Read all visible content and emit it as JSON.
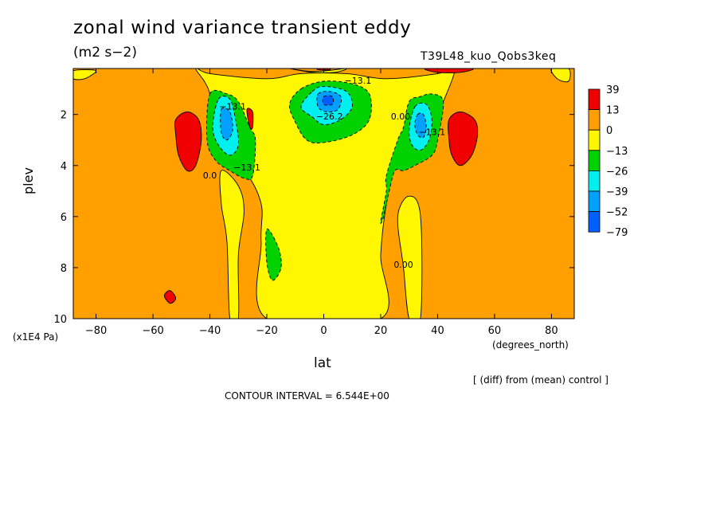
{
  "title": "zonal wind variance transient eddy",
  "units": "(m2 s−2)",
  "run_label": "T39L48_kuo_Qobs3keq",
  "diff_note": "[ (diff) from (mean) control ]",
  "contour_interval": "CONTOUR INTERVAL = 6.544E+00",
  "colors": {
    "c39": "#f00000",
    "c13": "#ffa000",
    "c0": "#fff700",
    "cm13": "#00d200",
    "cm26": "#00f0f0",
    "cm39": "#00a0ff",
    "cm52": "#0060ff"
  },
  "chart_data": {
    "type": "heatmap",
    "subtype": "filled-contour",
    "title": "zonal wind variance transient eddy",
    "xlabel": "lat",
    "xunits": "(degrees_north)",
    "ylabel": "plev",
    "yunits": "(x1E4 Pa)",
    "xlim": [
      -88,
      88
    ],
    "ylim": [
      10,
      0.2
    ],
    "xticks": [
      -80,
      -60,
      -40,
      -20,
      0,
      20,
      40,
      60,
      80
    ],
    "xtick_labels": [
      "−80",
      "−60",
      "−40",
      "−20",
      "0",
      "20",
      "40",
      "60",
      "80"
    ],
    "yticks": [
      2,
      4,
      6,
      8,
      10
    ],
    "ytick_labels": [
      "2",
      "4",
      "6",
      "8",
      "10"
    ],
    "colorbar": {
      "labels": [
        "39",
        "13",
        "0",
        "−13",
        "−26",
        "−39",
        "−52",
        "−79"
      ],
      "colors": [
        "#f00000",
        "#ffa000",
        "#fff700",
        "#00d200",
        "#00f0f0",
        "#00a0ff",
        "#0060ff"
      ]
    },
    "contour_labels": [
      {
        "text": "−13.1",
        "x": 12,
        "y": 0.8
      },
      {
        "text": "−26.2",
        "x": 2,
        "y": 2.2
      },
      {
        "text": "0.00",
        "x": 27,
        "y": 2.2
      },
      {
        "text": "−13.1",
        "x": -27,
        "y": 4.2
      },
      {
        "text": "0.0",
        "x": -40,
        "y": 4.5
      },
      {
        "text": "−13.1",
        "x": 38,
        "y": 2.8
      },
      {
        "text": "0.00",
        "x": 28,
        "y": 8
      },
      {
        "text": "−13.1",
        "x": -32,
        "y": 1.8
      }
    ],
    "regions": [
      {
        "level": "c0",
        "path": [
          [
            -45,
            0.2
          ],
          [
            -40,
            0.4
          ],
          [
            -20,
            0.6
          ],
          [
            -8,
            0.4
          ],
          [
            8,
            0.4
          ],
          [
            22,
            0.6
          ],
          [
            40,
            0.4
          ],
          [
            46,
            0.2
          ],
          [
            42,
            1.5
          ],
          [
            36,
            3
          ],
          [
            26,
            3.5
          ],
          [
            22,
            5.5
          ],
          [
            20,
            7.5
          ],
          [
            20,
            10
          ],
          [
            -20,
            10
          ],
          [
            -22,
            7
          ],
          [
            -22,
            5.5
          ],
          [
            -28,
            4.2
          ],
          [
            -38,
            3.5
          ],
          [
            -40,
            1.2
          ]
        ]
      },
      {
        "level": "c0",
        "path": [
          [
            -12,
            0.2
          ],
          [
            -6,
            0.3
          ],
          [
            0,
            0.3
          ],
          [
            8,
            0.2
          ],
          [
            4,
            0.35
          ],
          [
            -4,
            0.35
          ]
        ]
      },
      {
        "level": "c0",
        "path": [
          [
            80,
            0.2
          ],
          [
            86,
            0.2
          ],
          [
            86,
            0.7
          ],
          [
            82,
            0.6
          ]
        ]
      },
      {
        "level": "c0",
        "path": [
          [
            -88,
            0.3
          ],
          [
            -84,
            0.25
          ],
          [
            -80,
            0.3
          ],
          [
            -84,
            0.6
          ],
          [
            -88,
            0.6
          ]
        ]
      },
      {
        "level": "c0",
        "path": [
          [
            -36,
            4.2
          ],
          [
            -30,
            4.8
          ],
          [
            -28,
            5.8
          ],
          [
            -30,
            7.5
          ],
          [
            -30,
            10
          ],
          [
            -33,
            10
          ],
          [
            -34,
            7
          ],
          [
            -36,
            5.5
          ]
        ]
      },
      {
        "level": "c0",
        "path": [
          [
            26,
            6
          ],
          [
            30,
            5.2
          ],
          [
            34,
            6
          ],
          [
            34,
            10
          ],
          [
            30,
            10
          ],
          [
            28,
            8
          ]
        ]
      },
      {
        "level": "cm13",
        "path": [
          [
            -8,
            1
          ],
          [
            0,
            0.7
          ],
          [
            10,
            0.8
          ],
          [
            16,
            1.2
          ],
          [
            16,
            2.2
          ],
          [
            10,
            2.8
          ],
          [
            0,
            3.1
          ],
          [
            -6,
            3
          ],
          [
            -10,
            2.3
          ],
          [
            -12,
            1.6
          ]
        ]
      },
      {
        "level": "cm13",
        "path": [
          [
            -40,
            1.2
          ],
          [
            -34,
            1.2
          ],
          [
            -30,
            1.5
          ],
          [
            -26,
            2.5
          ],
          [
            -24,
            3
          ],
          [
            -25,
            4.4
          ],
          [
            -28,
            4.5
          ],
          [
            -33,
            4.2
          ],
          [
            -38,
            3.8
          ],
          [
            -41,
            3
          ]
        ]
      },
      {
        "level": "cm13",
        "path": [
          [
            30,
            1.5
          ],
          [
            34,
            1.3
          ],
          [
            38,
            1.2
          ],
          [
            42,
            1.5
          ],
          [
            40,
            3
          ],
          [
            38,
            3.6
          ],
          [
            32,
            4
          ],
          [
            28,
            4.2
          ],
          [
            25,
            4.2
          ],
          [
            23,
            5
          ],
          [
            21,
            6
          ],
          [
            20,
            6.2
          ],
          [
            22,
            5
          ],
          [
            22,
            4.4
          ],
          [
            26,
            3
          ],
          [
            28,
            2.5
          ]
        ]
      },
      {
        "level": "cm13",
        "path": [
          [
            -20,
            6.5
          ],
          [
            -16,
            7.2
          ],
          [
            -15,
            8
          ],
          [
            -18,
            8.5
          ],
          [
            -20,
            7.8
          ]
        ]
      },
      {
        "level": "cm26",
        "path": [
          [
            -4,
            1.1
          ],
          [
            0,
            0.9
          ],
          [
            8,
            1.1
          ],
          [
            10,
            1.7
          ],
          [
            6,
            2.2
          ],
          [
            0,
            2.4
          ],
          [
            -4,
            2.1
          ],
          [
            -8,
            1.7
          ]
        ]
      },
      {
        "level": "cm26",
        "path": [
          [
            -37,
            1.4
          ],
          [
            -33,
            1.4
          ],
          [
            -31,
            2.2
          ],
          [
            -30,
            3.2
          ],
          [
            -33,
            3.6
          ],
          [
            -37,
            3.2
          ],
          [
            -39,
            2.5
          ]
        ]
      },
      {
        "level": "cm26",
        "path": [
          [
            32,
            1.7
          ],
          [
            36,
            1.6
          ],
          [
            38,
            2.2
          ],
          [
            37,
            3
          ],
          [
            34,
            3.4
          ],
          [
            31,
            3.2
          ],
          [
            30,
            2.6
          ]
        ]
      },
      {
        "level": "cm39",
        "path": [
          [
            -2,
            1.2
          ],
          [
            2,
            1.1
          ],
          [
            6,
            1.3
          ],
          [
            5,
            1.8
          ],
          [
            1,
            1.9
          ],
          [
            -2,
            1.7
          ]
        ]
      },
      {
        "level": "cm39",
        "path": [
          [
            -36,
            1.8
          ],
          [
            -33,
            1.9
          ],
          [
            -32,
            2.6
          ],
          [
            -34,
            3
          ],
          [
            -36,
            2.7
          ]
        ]
      },
      {
        "level": "cm39",
        "path": [
          [
            33,
            2
          ],
          [
            35,
            2
          ],
          [
            36,
            2.5
          ],
          [
            35,
            2.9
          ],
          [
            33,
            2.8
          ],
          [
            32,
            2.4
          ]
        ]
      },
      {
        "level": "cm52",
        "path": [
          [
            0,
            1.3
          ],
          [
            3,
            1.3
          ],
          [
            3,
            1.6
          ],
          [
            0,
            1.6
          ]
        ]
      },
      {
        "level": "c39",
        "path": [
          [
            -52,
            2.2
          ],
          [
            -48,
            1.9
          ],
          [
            -44,
            2.2
          ],
          [
            -43,
            3
          ],
          [
            -45,
            4
          ],
          [
            -48,
            4.2
          ],
          [
            -51,
            3.6
          ],
          [
            -52,
            2.8
          ]
        ]
      },
      {
        "level": "c39",
        "path": [
          [
            44,
            2.2
          ],
          [
            48,
            1.9
          ],
          [
            53,
            2.2
          ],
          [
            54,
            2.8
          ],
          [
            52,
            3.6
          ],
          [
            48,
            4
          ],
          [
            45,
            3.6
          ],
          [
            44,
            3
          ]
        ]
      },
      {
        "level": "c39",
        "path": [
          [
            -27,
            1.8
          ],
          [
            -25,
            1.9
          ],
          [
            -25,
            2.5
          ],
          [
            -26,
            2.5
          ]
        ]
      },
      {
        "level": "c39",
        "path": [
          [
            -56,
            9.1
          ],
          [
            -54,
            8.9
          ],
          [
            -52,
            9.2
          ],
          [
            -54,
            9.4
          ]
        ]
      },
      {
        "level": "c39",
        "path": [
          [
            36,
            0.2
          ],
          [
            52,
            0.2
          ],
          [
            48,
            0.35
          ],
          [
            40,
            0.35
          ]
        ]
      },
      {
        "level": "c39",
        "path": [
          [
            -2,
            0.15
          ],
          [
            2,
            0.15
          ],
          [
            2,
            0.25
          ],
          [
            -2,
            0.25
          ]
        ]
      }
    ]
  }
}
